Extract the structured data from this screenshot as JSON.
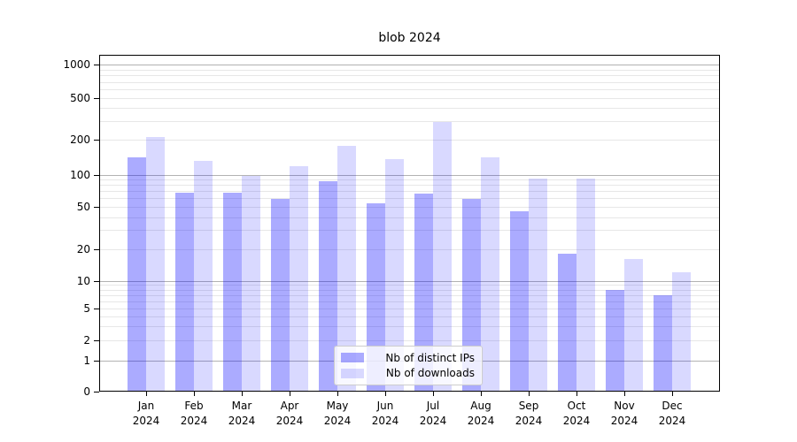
{
  "chart_data": {
    "type": "bar",
    "title": "blob 2024",
    "categories": [
      "Jan 2024",
      "Feb 2024",
      "Mar 2024",
      "Apr 2024",
      "May 2024",
      "Jun 2024",
      "Jul 2024",
      "Aug 2024",
      "Sep 2024",
      "Oct 2024",
      "Nov 2024",
      "Dec 2024"
    ],
    "series": [
      {
        "name": "Nb of distinct IPs",
        "color": "rgba(0,0,255,0.33)",
        "values": [
          140,
          68,
          68,
          59,
          87,
          54,
          67,
          59,
          45,
          18,
          8,
          7
        ]
      },
      {
        "name": "Nb of downloads",
        "color": "rgba(0,0,255,0.15)",
        "values": [
          210,
          132,
          97,
          118,
          178,
          135,
          293,
          140,
          91,
          91,
          16,
          12
        ]
      }
    ],
    "xlabel": "",
    "ylabel": "",
    "yscale": "symlog",
    "ylim": [
      0,
      1300
    ],
    "y_ticks": [
      0,
      1,
      2,
      5,
      10,
      20,
      50,
      100,
      200,
      500,
      1000
    ],
    "grid": true,
    "legend_position": "lower center"
  },
  "colors": {
    "bar_distinct_ips": "rgba(0,0,255,0.33)",
    "bar_downloads": "rgba(0,0,255,0.15)",
    "grid_major": "#b2b2b2",
    "grid_minor": "#e7e7e7",
    "spine": "#000000",
    "legend_border": "#cccccc"
  }
}
